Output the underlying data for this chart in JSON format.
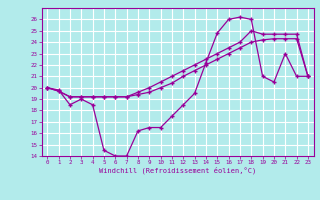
{
  "xlabel": "Windchill (Refroidissement éolien,°C)",
  "background_color": "#b2ebeb",
  "grid_color": "#ffffff",
  "line_color": "#990099",
  "x_hours": [
    0,
    1,
    2,
    3,
    4,
    5,
    6,
    7,
    8,
    9,
    10,
    11,
    12,
    13,
    14,
    15,
    16,
    17,
    18,
    19,
    20,
    21,
    22,
    23
  ],
  "windchill": [
    20,
    19.8,
    18.5,
    19,
    18.5,
    14.5,
    14,
    14,
    16.2,
    16.5,
    16.5,
    17.5,
    18.5,
    19.5,
    22.2,
    24.8,
    26,
    26.2,
    26,
    21,
    20.5,
    23,
    21,
    21
  ],
  "line2": [
    20,
    19.7,
    19.2,
    19.2,
    19.2,
    19.2,
    19.2,
    19.2,
    19.4,
    19.6,
    20.0,
    20.4,
    21.0,
    21.5,
    22.0,
    22.5,
    23.0,
    23.5,
    24.0,
    24.2,
    24.3,
    24.3,
    24.3,
    21.0
  ],
  "line3": [
    20,
    19.7,
    19.2,
    19.2,
    19.2,
    19.2,
    19.2,
    19.2,
    19.6,
    20.0,
    20.5,
    21.0,
    21.5,
    22.0,
    22.5,
    23.0,
    23.5,
    24.0,
    25.0,
    24.7,
    24.7,
    24.7,
    24.7,
    21.0
  ],
  "ylim": [
    14,
    27
  ],
  "xlim": [
    -0.5,
    23.5
  ],
  "yticks": [
    14,
    15,
    16,
    17,
    18,
    19,
    20,
    21,
    22,
    23,
    24,
    25,
    26
  ],
  "xticks": [
    0,
    1,
    2,
    3,
    4,
    5,
    6,
    7,
    8,
    9,
    10,
    11,
    12,
    13,
    14,
    15,
    16,
    17,
    18,
    19,
    20,
    21,
    22,
    23
  ],
  "xtick_labels": [
    "0",
    "1",
    "2",
    "3",
    "4",
    "5",
    "6",
    "7",
    "8",
    "9",
    "10",
    "11",
    "12",
    "13",
    "14",
    "15",
    "16",
    "17",
    "18",
    "19",
    "20",
    "21",
    "22",
    "23"
  ],
  "ytick_labels": [
    "14",
    "15",
    "16",
    "17",
    "18",
    "19",
    "20",
    "21",
    "22",
    "23",
    "24",
    "25",
    "26"
  ],
  "figsize": [
    3.2,
    2.0
  ],
  "dpi": 100
}
